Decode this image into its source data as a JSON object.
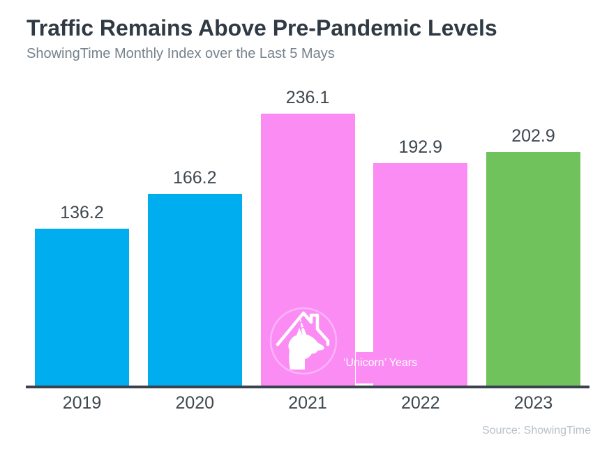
{
  "header": {
    "title": "Traffic Remains Above Pre-Pandemic Levels",
    "subtitle": "ShowingTime Monthly Index over the Last 5 Mays"
  },
  "chart_data": {
    "type": "bar",
    "categories": [
      "2019",
      "2020",
      "2021",
      "2022",
      "2023"
    ],
    "values": [
      136.2,
      166.2,
      236.1,
      192.9,
      202.9
    ],
    "value_labels": [
      "136.2",
      "166.2",
      "236.1",
      "192.9",
      "202.9"
    ],
    "bar_colors": [
      "#00aeef",
      "#00aeef",
      "#fb8cf4",
      "#fb8cf4",
      "#70c35c"
    ],
    "title": "Traffic Remains Above Pre-Pandemic Levels",
    "xlabel": "",
    "ylabel": "",
    "ylim": [
      0,
      236.1
    ],
    "grid": false,
    "legend": false,
    "annotation": {
      "text": "‘Unicorn’ Years",
      "applies_to": [
        "2021",
        "2022"
      ],
      "icon": "house-unicorn-icon",
      "text_color": "#ffffff"
    }
  },
  "footer": {
    "source": "Source: ShowingTime"
  },
  "colors": {
    "background": "#ffffff",
    "title": "#303a44",
    "subtitle": "#76828c",
    "labels": "#3f474f",
    "axis": "#3a424d",
    "blue": "#00aeef",
    "pink": "#fb8cf4",
    "green": "#70c35c",
    "source": "#b9c0c7"
  }
}
